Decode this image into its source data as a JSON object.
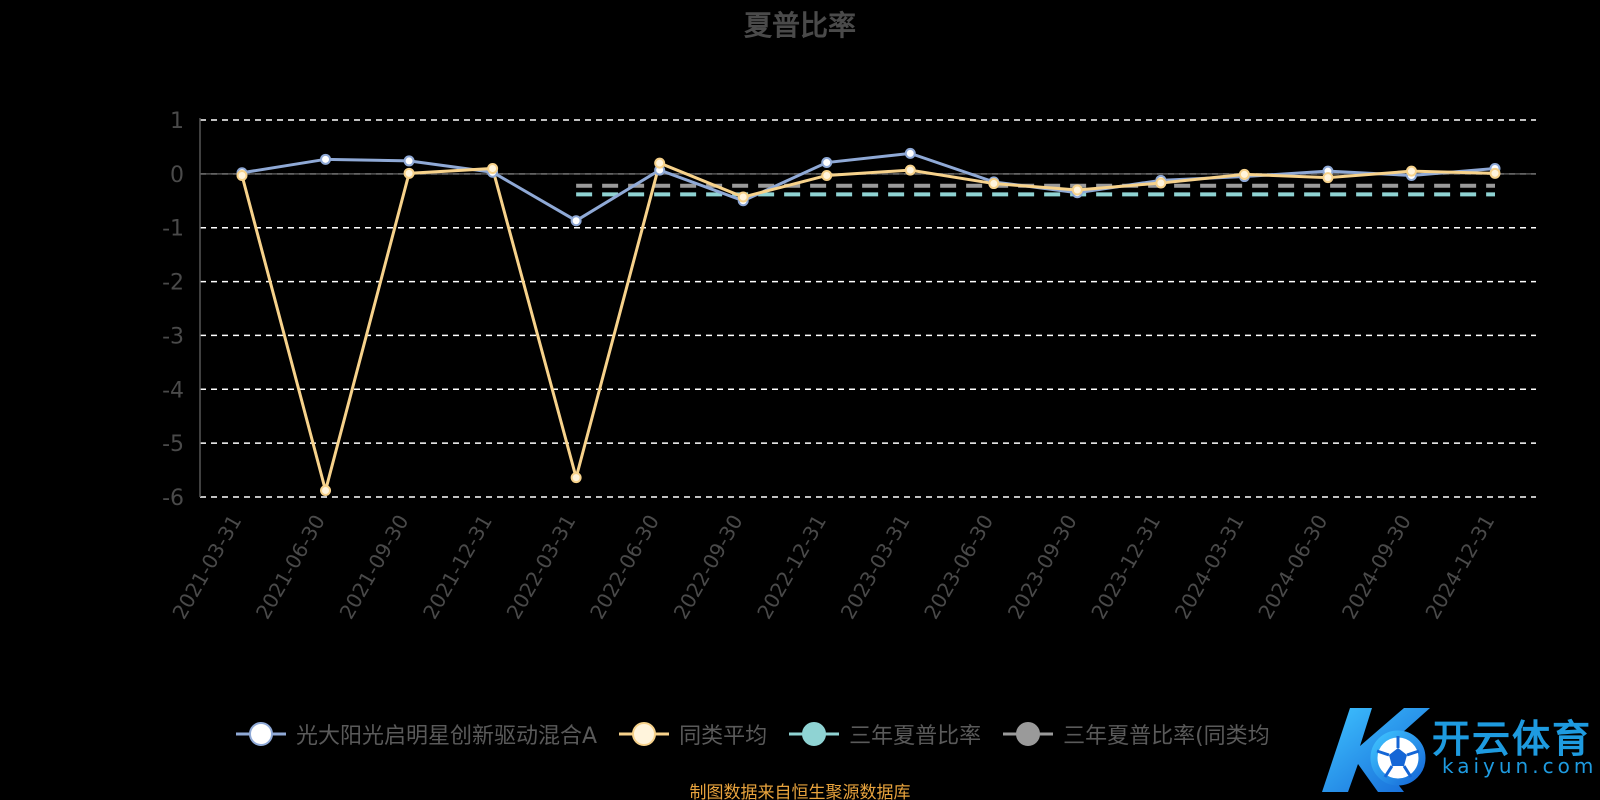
{
  "colors": {
    "background": "#000000",
    "fund_line": "#8fa9d6",
    "avg_line": "#f7d28b",
    "three_year": "#8fd3d3",
    "three_year_avg": "#9a9a9a",
    "grid": "#ffffff",
    "axis_text": "#4a4a4a",
    "source_note": "#e8a33d",
    "logo": "#1e9be0"
  },
  "chart_data": {
    "type": "line",
    "title": "夏普比率",
    "categories": [
      "2021-03-31",
      "2021-06-30",
      "2021-09-30",
      "2021-12-31",
      "2022-03-31",
      "2022-06-30",
      "2022-09-30",
      "2022-12-31",
      "2023-03-31",
      "2023-06-30",
      "2023-09-30",
      "2023-12-31",
      "2024-03-31",
      "2024-06-30",
      "2024-09-30",
      "2024-12-31"
    ],
    "y_ticks": [
      1,
      0,
      -1,
      -2,
      -3,
      -4,
      -5,
      -6
    ],
    "ylim": [
      -6,
      1
    ],
    "grid": true,
    "grid_style": "dashed",
    "legend_position": "bottom",
    "series": [
      {
        "name": "光大阳光启明星创新驱动混合A",
        "color": "#8fa9d6",
        "values": [
          0.02,
          0.27,
          0.24,
          0.03,
          -0.87,
          0.07,
          -0.5,
          0.21,
          0.38,
          -0.15,
          -0.35,
          -0.12,
          -0.05,
          0.05,
          -0.03,
          0.1
        ]
      },
      {
        "name": "同类平均",
        "color": "#f7d28b",
        "values": [
          -0.03,
          -5.88,
          0.01,
          0.1,
          -5.64,
          0.2,
          -0.43,
          -0.03,
          0.07,
          -0.18,
          -0.3,
          -0.17,
          -0.01,
          -0.07,
          0.05,
          0.01
        ]
      },
      {
        "name": "三年夏普比率",
        "color": "#8fd3d3",
        "style": "dashed",
        "x_range": [
          "2022-03-31",
          "2024-12-31"
        ],
        "value": -0.38
      },
      {
        "name": "三年夏普比率(同类均值)",
        "color": "#9a9a9a",
        "style": "dashed",
        "x_range": [
          "2022-03-31",
          "2024-12-31"
        ],
        "value": -0.22
      }
    ]
  },
  "legend": {
    "items": [
      {
        "label": "光大阳光启明星创新驱动混合A",
        "color": "#8fa9d6",
        "dot": "#ffffff"
      },
      {
        "label": "同类平均",
        "color": "#f7d28b",
        "dot": "#fff4dc"
      },
      {
        "label": "三年夏普比率",
        "color": "#8fd3d3",
        "dot": "#8fd3d3"
      },
      {
        "label": "三年夏普比率(同类均",
        "color": "#9a9a9a",
        "dot": "#9a9a9a"
      }
    ]
  },
  "footer": {
    "source": "制图数据来自恒生聚源数据库"
  },
  "logo": {
    "cn": "开云体育",
    "en": "kaiyun.com",
    "mark": "K"
  }
}
